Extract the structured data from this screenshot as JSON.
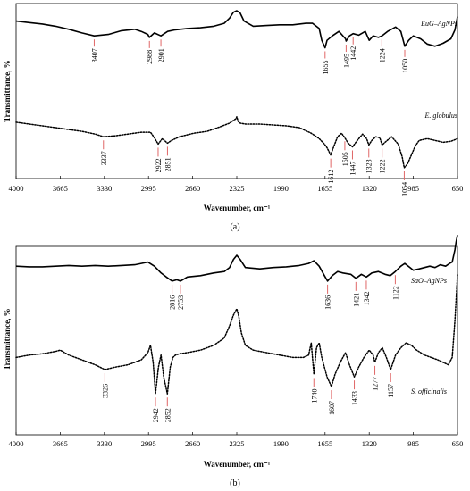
{
  "chart_data": [
    {
      "type": "line",
      "caption": "(a)",
      "xlabel": "Wavenumber, cm⁻¹",
      "ylabel": "Transmittance, %",
      "xlim": [
        4000,
        650
      ],
      "x_reversed": true,
      "xticks": [
        "4000",
        "3665",
        "3330",
        "2995",
        "2660",
        "2325",
        "1990",
        "1655",
        "1320",
        "985",
        "650"
      ],
      "series": [
        {
          "name": "EuG–AgNPs",
          "style": "solid",
          "x": [
            4000,
            3900,
            3800,
            3700,
            3600,
            3500,
            3407,
            3300,
            3200,
            3100,
            3050,
            3000,
            2988,
            2950,
            2901,
            2850,
            2800,
            2700,
            2600,
            2500,
            2420,
            2380,
            2350,
            2325,
            2300,
            2270,
            2200,
            2100,
            2000,
            1900,
            1800,
            1750,
            1700,
            1680,
            1655,
            1640,
            1600,
            1550,
            1500,
            1495,
            1470,
            1442,
            1400,
            1350,
            1320,
            1290,
            1250,
            1224,
            1180,
            1120,
            1080,
            1050,
            1020,
            985,
            930,
            880,
            820,
            760,
            700,
            670,
            650
          ],
          "y": [
            0.86,
            0.84,
            0.82,
            0.79,
            0.75,
            0.7,
            0.66,
            0.68,
            0.73,
            0.75,
            0.72,
            0.68,
            0.64,
            0.7,
            0.66,
            0.72,
            0.74,
            0.76,
            0.77,
            0.79,
            0.83,
            0.9,
            0.98,
            1.0,
            0.97,
            0.86,
            0.79,
            0.8,
            0.81,
            0.81,
            0.83,
            0.83,
            0.76,
            0.6,
            0.5,
            0.6,
            0.66,
            0.72,
            0.62,
            0.59,
            0.66,
            0.69,
            0.67,
            0.72,
            0.6,
            0.66,
            0.64,
            0.66,
            0.72,
            0.78,
            0.72,
            0.52,
            0.6,
            0.66,
            0.62,
            0.55,
            0.52,
            0.56,
            0.62,
            0.74,
            0.92
          ]
        },
        {
          "name": "E. globulus",
          "style": "dotted",
          "x": [
            4000,
            3900,
            3800,
            3700,
            3600,
            3500,
            3400,
            3337,
            3250,
            3150,
            3050,
            2980,
            2950,
            2922,
            2890,
            2851,
            2820,
            2760,
            2650,
            2550,
            2450,
            2380,
            2350,
            2330,
            2325,
            2315,
            2300,
            2260,
            2150,
            2050,
            1950,
            1850,
            1760,
            1700,
            1660,
            1640,
            1612,
            1590,
            1560,
            1530,
            1505,
            1480,
            1447,
            1410,
            1370,
            1340,
            1323,
            1300,
            1270,
            1240,
            1222,
            1200,
            1150,
            1100,
            1070,
            1054,
            1030,
            1000,
            970,
            940,
            880,
            820,
            760,
            700,
            650
          ],
          "y": [
            0.54,
            0.52,
            0.5,
            0.48,
            0.46,
            0.44,
            0.41,
            0.38,
            0.39,
            0.41,
            0.43,
            0.43,
            0.37,
            0.3,
            0.36,
            0.31,
            0.34,
            0.38,
            0.42,
            0.44,
            0.49,
            0.53,
            0.56,
            0.58,
            0.6,
            0.55,
            0.53,
            0.52,
            0.52,
            0.51,
            0.5,
            0.48,
            0.42,
            0.36,
            0.3,
            0.26,
            0.18,
            0.27,
            0.38,
            0.42,
            0.37,
            0.31,
            0.27,
            0.34,
            0.41,
            0.36,
            0.29,
            0.34,
            0.38,
            0.37,
            0.29,
            0.32,
            0.38,
            0.3,
            0.16,
            0.04,
            0.08,
            0.18,
            0.28,
            0.34,
            0.36,
            0.34,
            0.32,
            0.33,
            0.36
          ]
        }
      ],
      "annotations": [
        {
          "label": "3407",
          "series": "EuG–AgNPs"
        },
        {
          "label": "2988",
          "series": "EuG–AgNPs"
        },
        {
          "label": "2901",
          "series": "EuG–AgNPs"
        },
        {
          "label": "1655",
          "series": "EuG–AgNPs"
        },
        {
          "label": "1495",
          "series": "EuG–AgNPs"
        },
        {
          "label": "1442",
          "series": "EuG–AgNPs"
        },
        {
          "label": "1224",
          "series": "EuG–AgNPs"
        },
        {
          "label": "1050",
          "series": "EuG–AgNPs"
        },
        {
          "label": "3337",
          "series": "E. globulus"
        },
        {
          "label": "2922",
          "series": "E. globulus"
        },
        {
          "label": "2851",
          "series": "E. globulus"
        },
        {
          "label": "1612",
          "series": "E. globulus"
        },
        {
          "label": "1505",
          "series": "E. globulus"
        },
        {
          "label": "1447",
          "series": "E. globulus"
        },
        {
          "label": "1323",
          "series": "E. globulus"
        },
        {
          "label": "1222",
          "series": "E. globulus"
        },
        {
          "label": "1054",
          "series": "E. globulus"
        }
      ]
    },
    {
      "type": "line",
      "caption": "(b)",
      "xlabel": "Wavenumber, cm⁻¹",
      "ylabel": "Transmittance, %",
      "xlim": [
        4000,
        650
      ],
      "x_reversed": true,
      "xticks": [
        "4000",
        "3665",
        "3330",
        "2995",
        "2660",
        "2325",
        "1990",
        "1655",
        "1320",
        "985",
        "650"
      ],
      "series": [
        {
          "name": "SaO–AgNPs",
          "style": "solid",
          "x": [
            4000,
            3900,
            3800,
            3700,
            3600,
            3500,
            3400,
            3300,
            3200,
            3100,
            3050,
            3000,
            2950,
            2900,
            2860,
            2816,
            2780,
            2753,
            2700,
            2600,
            2500,
            2420,
            2380,
            2350,
            2325,
            2300,
            2260,
            2150,
            2050,
            1950,
            1850,
            1780,
            1740,
            1700,
            1660,
            1636,
            1600,
            1560,
            1520,
            1460,
            1421,
            1380,
            1342,
            1300,
            1250,
            1200,
            1160,
            1122,
            1080,
            1050,
            1010,
            985,
            940,
            900,
            860,
            820,
            780,
            740,
            710,
            690,
            670,
            660,
            650
          ],
          "y": [
            0.84,
            0.83,
            0.83,
            0.84,
            0.85,
            0.84,
            0.85,
            0.84,
            0.85,
            0.86,
            0.88,
            0.9,
            0.84,
            0.74,
            0.68,
            0.62,
            0.64,
            0.62,
            0.68,
            0.7,
            0.74,
            0.76,
            0.82,
            0.94,
            1.0,
            0.94,
            0.82,
            0.8,
            0.82,
            0.83,
            0.85,
            0.88,
            0.92,
            0.84,
            0.7,
            0.62,
            0.7,
            0.76,
            0.74,
            0.72,
            0.66,
            0.72,
            0.68,
            0.74,
            0.76,
            0.72,
            0.7,
            0.76,
            0.84,
            0.88,
            0.82,
            0.78,
            0.8,
            0.82,
            0.84,
            0.82,
            0.86,
            0.84,
            0.88,
            0.9,
            1.08,
            1.2,
            1.3
          ]
        },
        {
          "name": "S. officinalis",
          "style": "dotted",
          "x": [
            4000,
            3900,
            3800,
            3700,
            3665,
            3600,
            3500,
            3400,
            3326,
            3250,
            3150,
            3050,
            3000,
            2980,
            2960,
            2942,
            2920,
            2900,
            2880,
            2852,
            2830,
            2810,
            2790,
            2760,
            2700,
            2600,
            2500,
            2420,
            2380,
            2350,
            2325,
            2310,
            2290,
            2260,
            2200,
            2100,
            2000,
            1900,
            1820,
            1780,
            1760,
            1740,
            1720,
            1700,
            1680,
            1640,
            1607,
            1580,
            1540,
            1500,
            1470,
            1433,
            1400,
            1360,
            1320,
            1290,
            1277,
            1250,
            1220,
            1190,
            1157,
            1120,
            1080,
            1040,
            1000,
            960,
            900,
            850,
            800,
            760,
            720,
            690,
            670,
            650
          ],
          "y": [
            0.6,
            0.62,
            0.63,
            0.65,
            0.66,
            0.62,
            0.58,
            0.54,
            0.5,
            0.52,
            0.54,
            0.58,
            0.64,
            0.7,
            0.56,
            0.3,
            0.52,
            0.62,
            0.44,
            0.3,
            0.52,
            0.6,
            0.62,
            0.63,
            0.64,
            0.66,
            0.7,
            0.76,
            0.86,
            0.95,
            1.0,
            0.94,
            0.8,
            0.7,
            0.66,
            0.64,
            0.62,
            0.6,
            0.6,
            0.62,
            0.72,
            0.46,
            0.68,
            0.72,
            0.6,
            0.44,
            0.36,
            0.46,
            0.56,
            0.64,
            0.54,
            0.44,
            0.52,
            0.6,
            0.66,
            0.62,
            0.56,
            0.64,
            0.68,
            0.6,
            0.5,
            0.62,
            0.68,
            0.72,
            0.7,
            0.66,
            0.62,
            0.6,
            0.58,
            0.56,
            0.54,
            0.6,
            0.9,
            1.28
          ]
        }
      ],
      "annotations": [
        {
          "label": "2816",
          "series": "SaO–AgNPs"
        },
        {
          "label": "2753",
          "series": "SaO–AgNPs"
        },
        {
          "label": "1636",
          "series": "SaO–AgNPs"
        },
        {
          "label": "1421",
          "series": "SaO–AgNPs"
        },
        {
          "label": "1342",
          "series": "SaO–AgNPs"
        },
        {
          "label": "1122",
          "series": "SaO–AgNPs"
        },
        {
          "label": "3326",
          "series": "S. officinalis"
        },
        {
          "label": "2942",
          "series": "S. officinalis"
        },
        {
          "label": "2852",
          "series": "S. officinalis"
        },
        {
          "label": "1740",
          "series": "S. officinalis"
        },
        {
          "label": "1607",
          "series": "S. officinalis"
        },
        {
          "label": "1433",
          "series": "S. officinalis"
        },
        {
          "label": "1277",
          "series": "S. officinalis"
        },
        {
          "label": "1157",
          "series": "S. officinalis"
        }
      ]
    }
  ],
  "colors": {
    "line": "#000000",
    "marker": "#e06666"
  }
}
